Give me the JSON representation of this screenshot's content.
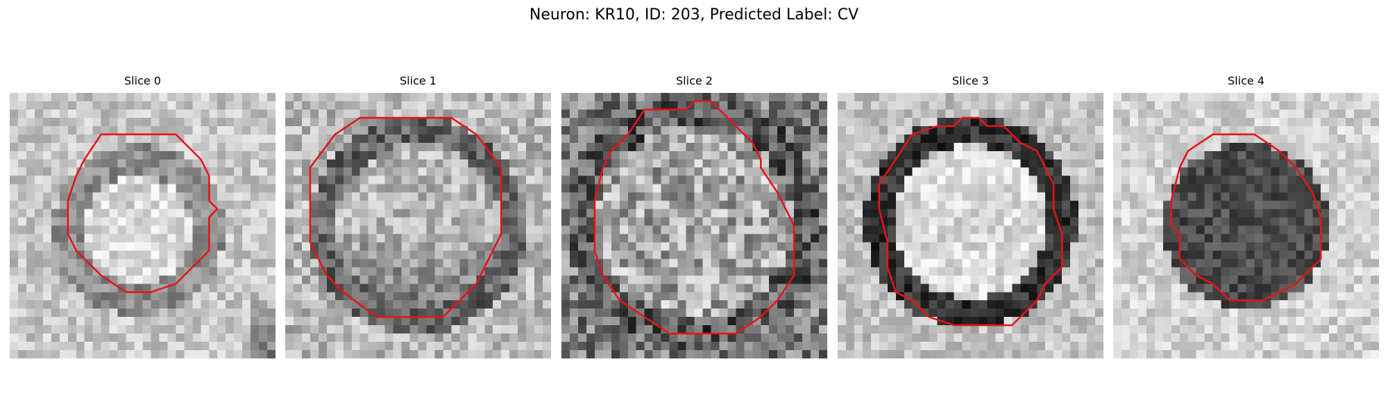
{
  "title": "Neuron: KR10, ID: 203, Predicted Label: CV",
  "contour_color": "#e8131b",
  "colormap": "grayscale",
  "panels": [
    {
      "label": "Slice 0",
      "description": "grayscale microscopy crop with a small red octagonal contour around a bright round cell body"
    },
    {
      "label": "Slice 1",
      "description": "grayscale microscopy crop with a larger red octagonal contour around a cell body with a dark lower interior"
    },
    {
      "label": "Slice 2",
      "description": "noisy grayscale microscopy crop with a large red contour spanning most of the frame"
    },
    {
      "label": "Slice 3",
      "description": "grayscale microscopy crop with a red contour around a bright cell body ringed by dark edges"
    },
    {
      "label": "Slice 4",
      "description": "grayscale microscopy crop with a red contour around a dark cell body on a light background"
    }
  ]
}
